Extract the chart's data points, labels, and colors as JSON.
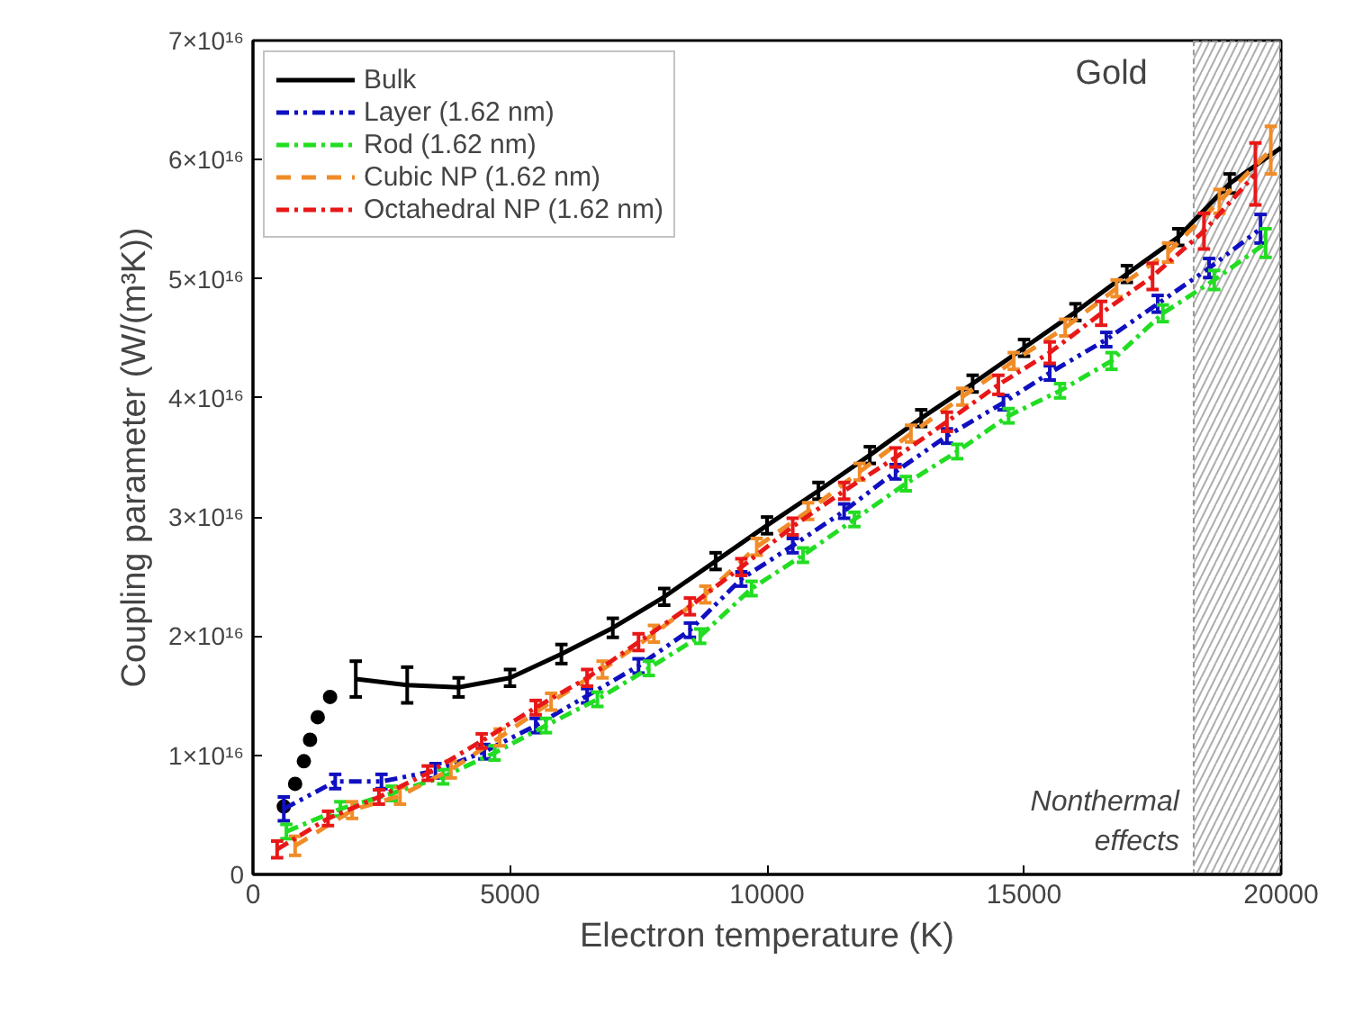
{
  "chart_data": {
    "type": "line",
    "title": "Gold",
    "xlabel": "Electron temperature (K)",
    "ylabel": "Coupling parameter (W/(m³K))",
    "xlim": [
      0,
      20000
    ],
    "xticks": [
      0,
      5000,
      10000,
      15000,
      20000
    ],
    "ylim": [
      0,
      7e+16
    ],
    "yticks": [
      {
        "value": 0,
        "label": "0"
      },
      {
        "value": 1e+16,
        "label": "1×10¹⁶"
      },
      {
        "value": 2e+16,
        "label": "2×10¹⁶"
      },
      {
        "value": 3e+16,
        "label": "3×10¹⁶"
      },
      {
        "value": 4e+16,
        "label": "4×10¹⁶"
      },
      {
        "value": 5e+16,
        "label": "5×10¹⁶"
      },
      {
        "value": 6e+16,
        "label": "6×10¹⁶"
      },
      {
        "value": 7e+16,
        "label": "7×10¹⁶"
      }
    ],
    "grid": false,
    "legend": "top left",
    "marker": "none",
    "bands": [
      {
        "axis": "x",
        "from": 18300,
        "to": 20000,
        "label": "Nonthermal effects",
        "color": "#999999"
      }
    ],
    "series": [
      {
        "type": "scatter",
        "marker": "circle",
        "color": "#000000",
        "x": [
          600,
          820,
          990,
          1110,
          1260,
          1500
        ],
        "values": [
          5700000000000000.0,
          7600000000000000.0,
          9500000000000000.0,
          1.13e+16,
          1.32e+16,
          1.49e+16
        ]
      },
      {
        "name": "Bulk",
        "color": "#000000",
        "line_style": "solid",
        "x": [
          2000,
          3000,
          4000,
          5000,
          6000,
          7000,
          8000,
          9000,
          10000,
          11000,
          12000,
          13000,
          14000,
          15000,
          16000,
          17000,
          18000,
          19000,
          20000
        ],
        "values": [
          1.64e+16,
          1.59e+16,
          1.57e+16,
          1.65e+16,
          1.85e+16,
          2.07e+16,
          2.33e+16,
          2.63e+16,
          2.93e+16,
          3.22e+16,
          3.52e+16,
          3.83e+16,
          4.12e+16,
          4.42e+16,
          4.72e+16,
          5.04e+16,
          5.35e+16,
          5.8e+16,
          6.1e+16
        ],
        "errors": [
          1500000000000000.0,
          1500000000000000.0,
          800000000000000.0,
          700000000000000.0,
          800000000000000.0,
          800000000000000.0,
          700000000000000.0,
          700000000000000.0,
          700000000000000.0,
          700000000000000.0,
          700000000000000.0,
          700000000000000.0,
          700000000000000.0,
          700000000000000.0,
          700000000000000.0,
          700000000000000.0,
          700000000000000.0,
          800000000000000.0,
          null
        ]
      },
      {
        "name": "Layer (1.62 nm)",
        "color": "#1010c0",
        "line_style": "dashdotdot",
        "x": [
          600,
          1600,
          2500,
          3550,
          4500,
          5500,
          6500,
          7500,
          8500,
          9500,
          10500,
          11500,
          12500,
          13500,
          14600,
          15500,
          16600,
          17600,
          18600,
          19600
        ],
        "values": [
          5500000000000000.0,
          7800000000000000.0,
          7800000000000000.0,
          8700000000000000.0,
          1.03e+16,
          1.25e+16,
          1.5e+16,
          1.75e+16,
          2.05e+16,
          2.48e+16,
          2.76e+16,
          3.05e+16,
          3.38e+16,
          3.68e+16,
          3.96e+16,
          4.21e+16,
          4.49e+16,
          4.79e+16,
          5.09e+16,
          5.42e+16
        ],
        "errors": [
          1000000000000000.0,
          600000000000000.0,
          600000000000000.0,
          600000000000000.0,
          600000000000000.0,
          600000000000000.0,
          600000000000000.0,
          600000000000000.0,
          600000000000000.0,
          600000000000000.0,
          600000000000000.0,
          600000000000000.0,
          600000000000000.0,
          600000000000000.0,
          600000000000000.0,
          600000000000000.0,
          600000000000000.0,
          700000000000000.0,
          800000000000000.0,
          1200000000000000.0
        ]
      },
      {
        "name": "Rod (1.62 nm)",
        "color": "#22dd22",
        "line_style": "dashdot",
        "x": [
          650,
          1700,
          2700,
          3700,
          4700,
          5700,
          6700,
          7700,
          8700,
          9700,
          10700,
          11700,
          12700,
          13700,
          14700,
          15700,
          16700,
          17700,
          18700,
          19700
        ],
        "values": [
          3600000000000000.0,
          5500000000000000.0,
          6800000000000000.0,
          8200000000000000.0,
          1.02e+16,
          1.25e+16,
          1.47e+16,
          1.73e+16,
          2e+16,
          2.4e+16,
          2.68e+16,
          2.98e+16,
          3.28e+16,
          3.55e+16,
          3.85e+16,
          4.06e+16,
          4.31e+16,
          4.71e+16,
          4.99e+16,
          5.3e+16
        ],
        "errors": [
          600000000000000.0,
          600000000000000.0,
          600000000000000.0,
          600000000000000.0,
          600000000000000.0,
          600000000000000.0,
          600000000000000.0,
          600000000000000.0,
          600000000000000.0,
          600000000000000.0,
          600000000000000.0,
          600000000000000.0,
          600000000000000.0,
          600000000000000.0,
          600000000000000.0,
          600000000000000.0,
          700000000000000.0,
          700000000000000.0,
          800000000000000.0,
          1200000000000000.0
        ]
      },
      {
        "name": "Cubic NP (1.62 nm)",
        "color": "#f08c28",
        "line_style": "dashed",
        "x": [
          820,
          1930,
          2860,
          3850,
          4800,
          5800,
          6800,
          7800,
          8800,
          9800,
          10800,
          11800,
          12800,
          13800,
          14800,
          15800,
          16800,
          17800,
          18800,
          19800
        ],
        "values": [
          2400000000000000.0,
          5400000000000000.0,
          6600000000000000.0,
          8800000000000000.0,
          1.15e+16,
          1.45e+16,
          1.72e+16,
          2.02e+16,
          2.35e+16,
          2.75e+16,
          3.05e+16,
          3.38e+16,
          3.7e+16,
          4.01e+16,
          4.31e+16,
          4.59e+16,
          4.92e+16,
          5.22e+16,
          5.65e+16,
          6.08e+16
        ],
        "errors": [
          800000000000000.0,
          700000000000000.0,
          700000000000000.0,
          700000000000000.0,
          700000000000000.0,
          700000000000000.0,
          700000000000000.0,
          700000000000000.0,
          700000000000000.0,
          700000000000000.0,
          700000000000000.0,
          700000000000000.0,
          700000000000000.0,
          700000000000000.0,
          700000000000000.0,
          700000000000000.0,
          700000000000000.0,
          800000000000000.0,
          1000000000000000.0,
          2000000000000000.0
        ]
      },
      {
        "name": "Octahedral NP (1.62 nm)",
        "color": "#e81818",
        "line_style": "dashdot",
        "x": [
          470,
          1460,
          2450,
          3400,
          4450,
          5500,
          6500,
          7500,
          8500,
          9500,
          10500,
          11500,
          12500,
          13500,
          14500,
          15500,
          16500,
          17500,
          18500,
          19500
        ],
        "values": [
          2100000000000000.0,
          4700000000000000.0,
          6500000000000000.0,
          8500000000000000.0,
          1.12e+16,
          1.4e+16,
          1.65e+16,
          1.95e+16,
          2.25e+16,
          2.58e+16,
          2.92e+16,
          3.22e+16,
          3.5e+16,
          3.8e+16,
          4.11e+16,
          4.38e+16,
          4.71e+16,
          5.02e+16,
          5.4e+16,
          5.88e+16
        ],
        "errors": [
          700000000000000.0,
          600000000000000.0,
          600000000000000.0,
          600000000000000.0,
          600000000000000.0,
          600000000000000.0,
          700000000000000.0,
          700000000000000.0,
          700000000000000.0,
          700000000000000.0,
          700000000000000.0,
          700000000000000.0,
          800000000000000.0,
          800000000000000.0,
          800000000000000.0,
          900000000000000.0,
          1000000000000000.0,
          1100000000000000.0,
          1500000000000000.0,
          2600000000000000.0
        ]
      }
    ]
  }
}
